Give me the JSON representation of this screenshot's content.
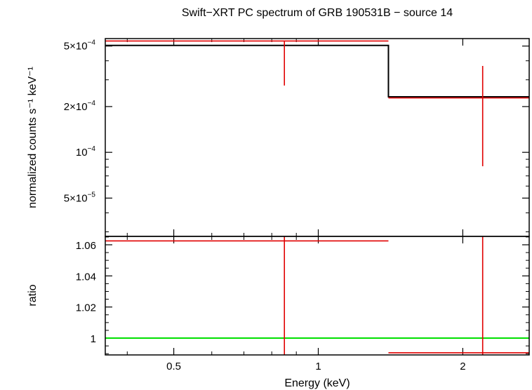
{
  "chart_data": [
    {
      "type": "line",
      "panel": "top",
      "title": "Swift−XRT PC spectrum of GRB 190531B − source 14",
      "ylabel": "normalized counts s⁻¹ keV⁻¹",
      "yscale": "log",
      "xscale": "log",
      "xlim": [
        0.36,
        2.75
      ],
      "ylim": [
        2.8e-05,
        0.00056
      ],
      "yticks": [
        {
          "value": 0.0005,
          "mantissa": "5×10",
          "exp": "−4"
        },
        {
          "value": 0.0002,
          "mantissa": "2×10",
          "exp": "−4"
        },
        {
          "value": 0.0001,
          "mantissa": "10",
          "exp": "−4"
        },
        {
          "value": 5e-05,
          "mantissa": "5×10",
          "exp": "−5"
        }
      ],
      "series": [
        {
          "name": "data",
          "color": "#e00000",
          "points": [
            {
              "x_lo": 0.36,
              "x_hi": 1.4,
              "x": 0.85,
              "y": 0.00054,
              "y_lo": 0.000275,
              "y_hi": 0.00054
            },
            {
              "x_lo": 1.4,
              "x_hi": 2.75,
              "x": 2.2,
              "y": 0.000228,
              "y_lo": 8.1e-05,
              "y_hi": 0.00037
            }
          ]
        },
        {
          "name": "model",
          "color": "#000000",
          "steps": [
            {
              "x_lo": 0.36,
              "x_hi": 1.4,
              "y": 0.000505
            },
            {
              "x_lo": 1.4,
              "x_hi": 2.75,
              "y": 0.000232
            }
          ]
        }
      ]
    },
    {
      "type": "line",
      "panel": "bottom",
      "ylabel": "ratio",
      "xlabel": "Energy (keV)",
      "xscale": "log",
      "xlim": [
        0.36,
        2.75
      ],
      "ylim": [
        0.9892,
        1.0654
      ],
      "yticks": [
        {
          "value": 1.06,
          "label": "1.06"
        },
        {
          "value": 1.04,
          "label": "1.04"
        },
        {
          "value": 1.02,
          "label": "1.02"
        },
        {
          "value": 1.0,
          "label": "1"
        }
      ],
      "xticks": [
        {
          "value": 0.5,
          "label": "0.5"
        },
        {
          "value": 1,
          "label": "1"
        },
        {
          "value": 2,
          "label": "2"
        }
      ],
      "reference_line": {
        "y": 1.0,
        "color": "#00e000"
      },
      "series": [
        {
          "name": "ratio",
          "color": "#e00000",
          "points": [
            {
              "x_lo": 0.36,
              "x_hi": 1.4,
              "x": 0.85,
              "y": 1.0625,
              "y_lo": 0.9892,
              "y_hi": 1.0654
            },
            {
              "x_lo": 1.4,
              "x_hi": 2.75,
              "x": 2.2,
              "y": 0.9906,
              "y_lo": 0.9892,
              "y_hi": 1.0654
            }
          ]
        }
      ]
    }
  ]
}
